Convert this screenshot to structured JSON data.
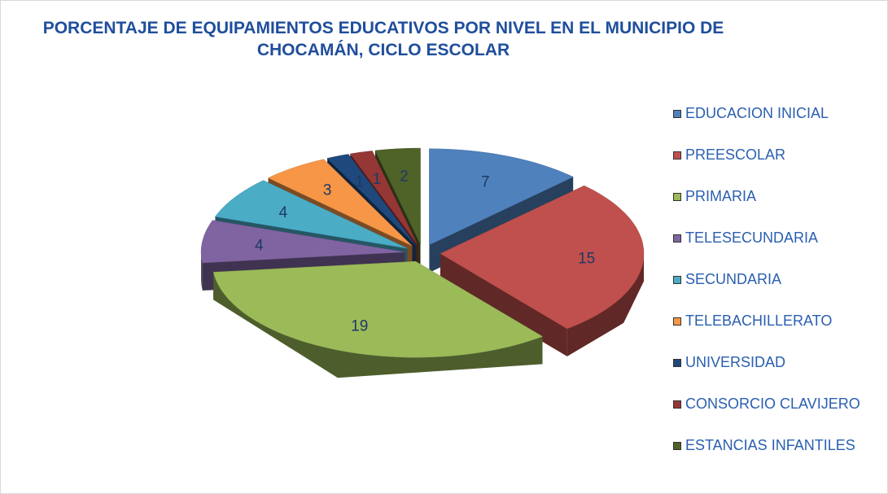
{
  "chart_data": {
    "type": "pie",
    "title": "PORCENTAJE DE EQUIPAMIENTOS EDUCATIVOS POR NIVEL EN EL MUNICIPIO DE CHOCAMÁN, CICLO ESCOLAR",
    "categories": [
      "EDUCACION INICIAL",
      "PREESCOLAR",
      "PRIMARIA",
      "TELESECUNDARIA",
      "SECUNDARIA",
      "TELEBACHILLERATO",
      "UNIVERSIDAD",
      "CONSORCIO CLAVIJERO",
      "ESTANCIAS INFANTILES"
    ],
    "values": [
      7,
      15,
      19,
      4,
      4,
      3,
      1,
      1,
      2
    ],
    "colors": [
      "#4f81bd",
      "#c0504d",
      "#9bbb59",
      "#8064a2",
      "#4bacc6",
      "#f79646",
      "#1f497d",
      "#953735",
      "#4f6228"
    ],
    "legend": "right"
  }
}
